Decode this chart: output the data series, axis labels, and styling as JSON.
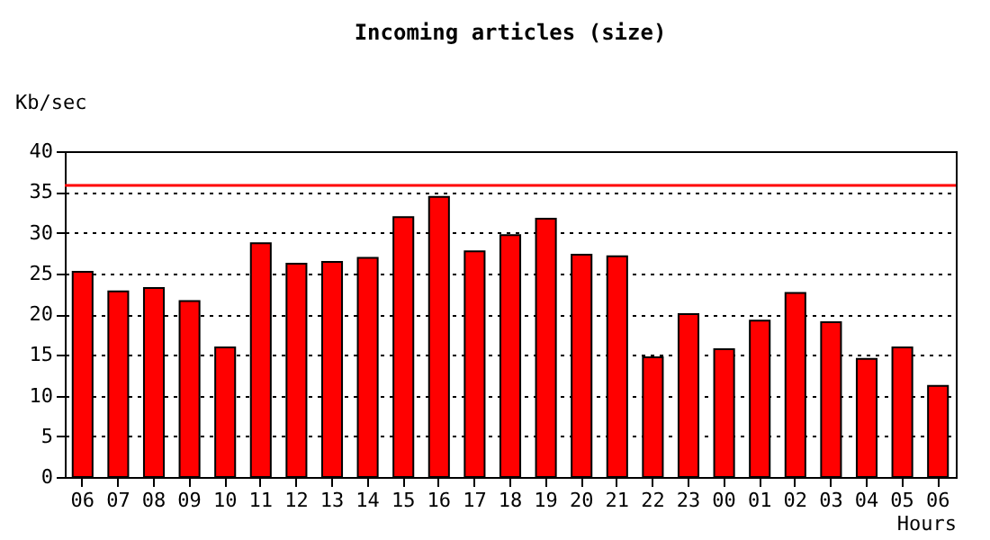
{
  "chart_data": {
    "type": "bar",
    "title": "Incoming articles (size)",
    "xlabel": "Hours",
    "ylabel": "Kb/sec",
    "categories": [
      "06",
      "07",
      "08",
      "09",
      "10",
      "11",
      "12",
      "13",
      "14",
      "15",
      "16",
      "17",
      "18",
      "19",
      "20",
      "21",
      "22",
      "23",
      "00",
      "01",
      "02",
      "03",
      "04",
      "05",
      "06"
    ],
    "values": [
      25.2,
      22.8,
      23.2,
      21.6,
      15.9,
      28.7,
      26.2,
      26.4,
      26.9,
      31.9,
      34.4,
      27.7,
      29.7,
      31.7,
      27.3,
      27.1,
      14.7,
      20.0,
      15.7,
      19.2,
      22.6,
      19.0,
      14.5,
      15.9,
      11.2
    ],
    "color": "#ff0000",
    "ylim": [
      0,
      40
    ],
    "yticks": [
      0,
      5,
      10,
      15,
      20,
      25,
      30,
      35,
      40
    ],
    "grid": "y",
    "ref_lines": [
      {
        "axis": "y",
        "value": 35.8,
        "color": "#ff0000"
      }
    ]
  }
}
